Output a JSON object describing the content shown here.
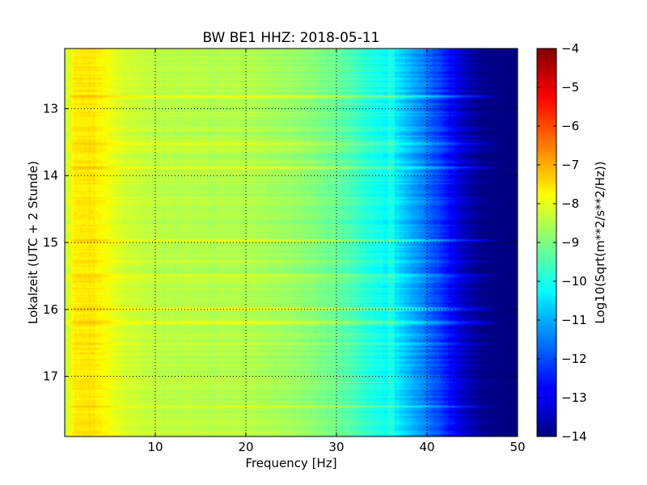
{
  "chart_data": {
    "type": "heatmap",
    "title": "BW BE1 HHZ: 2018-05-11",
    "xlabel": "Frequency [Hz]",
    "ylabel": "Lokalzeit (UTC + 2 Stunde)",
    "colorbar_label": "Log10(Sqrt(m**2/s**2/Hz))",
    "xlim": [
      0,
      50
    ],
    "ylim": [
      12.1,
      17.9
    ],
    "y_inverted": true,
    "xticks": [
      "10",
      "20",
      "30",
      "40",
      "50"
    ],
    "yticks": [
      "13",
      "14",
      "15",
      "16",
      "17"
    ],
    "colorbar_range": [
      -14,
      -4
    ],
    "colorbar_ticks": [
      "-4",
      "-5",
      "-6",
      "-7",
      "-8",
      "-9",
      "-10",
      "-11",
      "-12",
      "-13",
      "-14"
    ],
    "colormap": "jet",
    "grid": true,
    "level_profile": {
      "frequency": [
        0,
        1,
        3,
        6,
        10,
        20,
        25,
        30,
        33,
        36,
        38,
        40,
        42,
        44,
        46,
        50
      ],
      "log_amplitude": [
        -8.4,
        -7.6,
        -7.5,
        -8.1,
        -8.4,
        -8.5,
        -8.7,
        -9.2,
        -9.8,
        -10.3,
        -10.9,
        -11.6,
        -12.4,
        -13.3,
        -13.9,
        -14.0
      ]
    },
    "bright_bands": [
      {
        "time": 12.82,
        "strength": 0.8
      },
      {
        "time": 13.52,
        "strength": 0.5
      },
      {
        "time": 13.88,
        "strength": 0.6
      },
      {
        "time": 14.97,
        "strength": 1.0
      },
      {
        "time": 15.48,
        "strength": 0.5
      },
      {
        "time": 16.0,
        "strength": 0.8
      },
      {
        "time": 16.2,
        "strength": 0.7
      },
      {
        "time": 16.52,
        "strength": 0.6
      },
      {
        "time": 17.45,
        "strength": 0.7
      }
    ]
  }
}
